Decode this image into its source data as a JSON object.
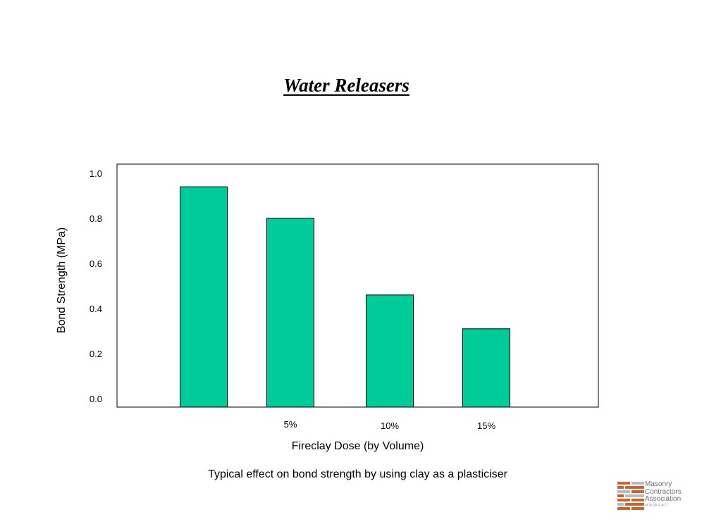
{
  "slide": {
    "title": "Water Releasers",
    "caption": "Typical effect on bond strength by using clay as a plasticiser"
  },
  "chart_data": {
    "type": "bar",
    "categories": [
      "",
      "5%",
      "10%",
      "15%"
    ],
    "values": [
      0.94,
      0.8,
      0.46,
      0.31
    ],
    "xlabel": "Fireclay Dose (by Volume)",
    "ylabel": "Bond Strength (MPa)",
    "ylim": [
      0,
      1.0
    ],
    "yticks": [
      "0.0",
      "0.2",
      "0.4",
      "0.6",
      "0.8",
      "1.0"
    ],
    "bar_color": "#00cc99",
    "grid": false,
    "legend": "none"
  },
  "logo": {
    "lines": [
      "Masonry",
      "Contractors",
      "Association"
    ],
    "subline": "of NSW & ACT",
    "colors": [
      "#c8642d",
      "#bbbbbb"
    ]
  }
}
